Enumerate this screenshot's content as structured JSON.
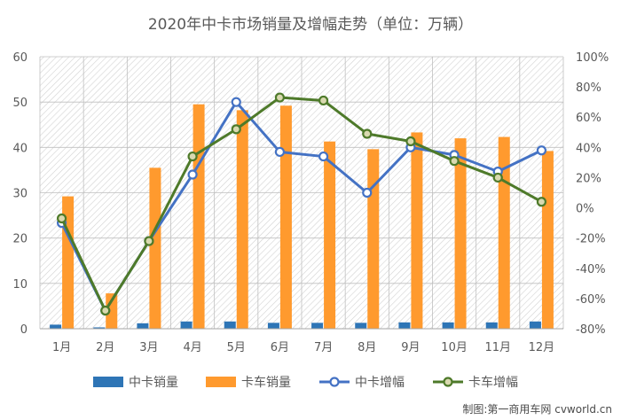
{
  "chart_data": {
    "type": "bar",
    "title": "2020年中卡市场销量及增幅走势（单位：万辆）",
    "categories": [
      "1月",
      "2月",
      "3月",
      "4月",
      "5月",
      "6月",
      "7月",
      "8月",
      "9月",
      "10月",
      "11月",
      "12月"
    ],
    "left_axis": {
      "ylim": [
        0,
        60
      ],
      "ticks": [
        "0",
        "10",
        "20",
        "30",
        "40",
        "50",
        "60"
      ]
    },
    "right_axis": {
      "ylim": [
        -80,
        100
      ],
      "ticks": [
        "-80%",
        "-60%",
        "-40%",
        "-20%",
        "0%",
        "20%",
        "40%",
        "60%",
        "80%",
        "100%"
      ]
    },
    "series": [
      {
        "name": "中卡销量",
        "type": "bar",
        "axis": "left",
        "color": "#2e75b6",
        "values": [
          0.9,
          0.3,
          1.2,
          1.6,
          1.6,
          1.3,
          1.3,
          1.3,
          1.4,
          1.4,
          1.4,
          1.6
        ]
      },
      {
        "name": "卡车销量",
        "type": "bar",
        "axis": "left",
        "color": "#ff9a2e",
        "values": [
          29.2,
          7.8,
          35.5,
          49.5,
          48.2,
          49.2,
          41.3,
          39.6,
          43.3,
          42.0,
          42.3,
          39.2
        ]
      },
      {
        "name": "中卡增幅",
        "type": "line",
        "axis": "right",
        "color": "#4472c4",
        "values": [
          -10,
          -68,
          -22,
          22,
          70,
          37,
          34,
          10,
          40,
          35,
          24,
          38
        ]
      },
      {
        "name": "卡车增幅",
        "type": "line",
        "axis": "right",
        "color": "#4e7a2a",
        "values": [
          -7,
          -68,
          -22,
          34,
          52,
          73,
          71,
          49,
          44,
          31,
          20,
          4
        ]
      }
    ],
    "legend_position": "bottom",
    "grid": true
  },
  "watermark": "制图:第一商用车网 cvworld.cn"
}
